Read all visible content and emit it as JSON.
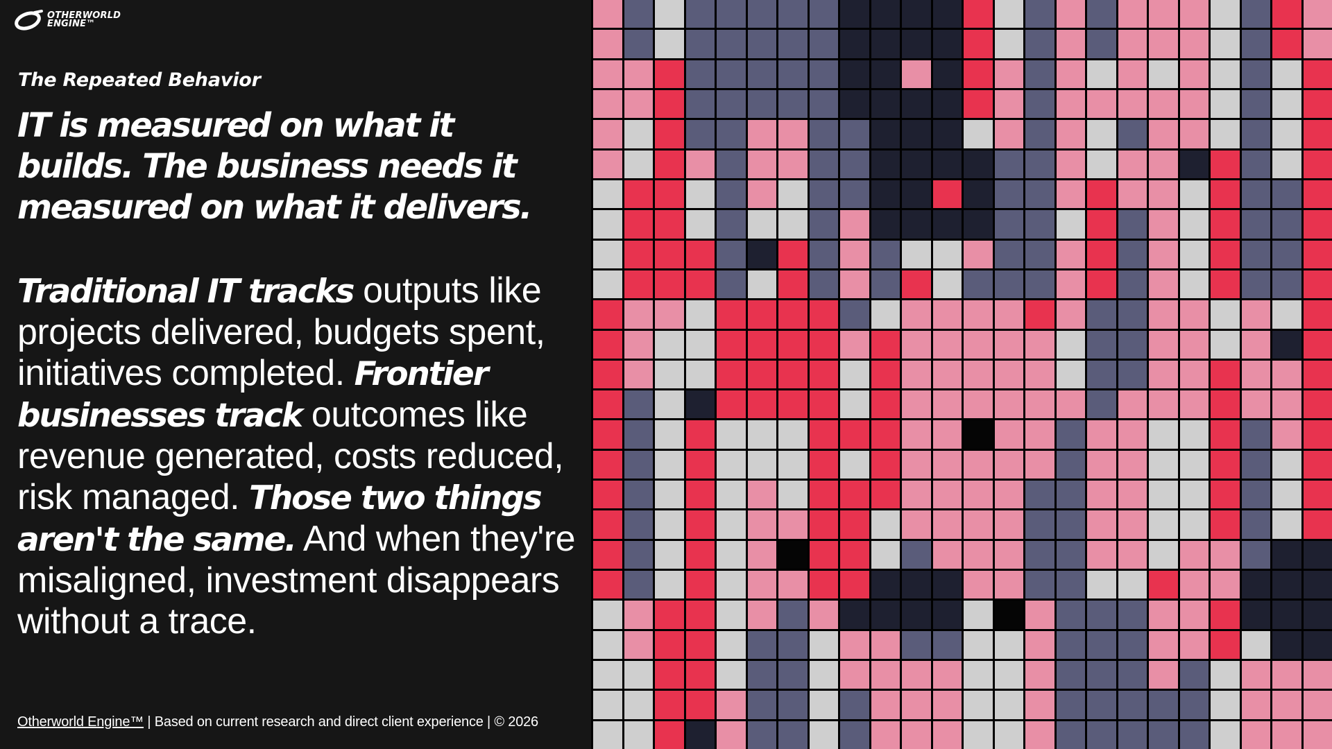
{
  "logo": {
    "line1": "OTHERWORLD",
    "line2": "ENGINE™",
    "icon": "otherworld-engine-logo-icon"
  },
  "eyebrow": "The Repeated Behavior",
  "headline": "IT is measured on what it builds. The business needs it measured on what it delivers.",
  "body": {
    "seg1_em": "Traditional IT tracks",
    "seg2": " outputs like projects delivered, budgets spent, initiatives completed. ",
    "seg3_em": "Frontier businesses track",
    "seg4": " outcomes like revenue generated, costs reduced, risk managed. ",
    "seg5_em": "Those two things aren't the same.",
    "seg6": " And when they're misaligned, investment disappears without a trace."
  },
  "footer": {
    "brand": "Otherworld Engine™",
    "rest": " | Based on current research and direct client experience | © 2026"
  },
  "colors": {
    "background": "#161616",
    "text": "#ffffff",
    "tile_red": "#e8334f",
    "tile_pink": "#e88fa6",
    "tile_light_gray": "#cfcfcf",
    "tile_slate": "#5a5c7a",
    "tile_navy": "#1e2030",
    "tile_black": "#050505",
    "grid_line": "#000000"
  }
}
